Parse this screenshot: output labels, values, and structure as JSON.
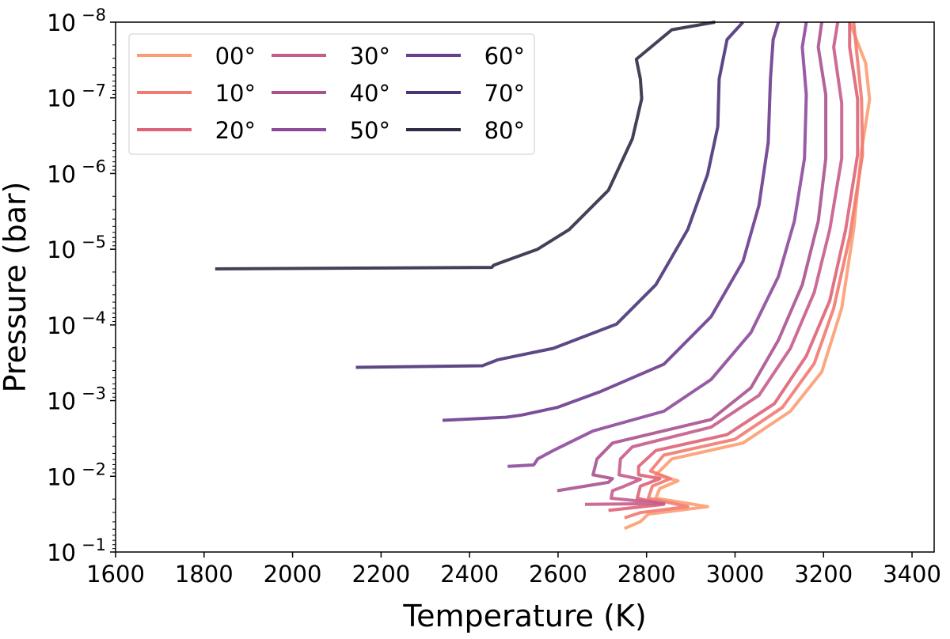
{
  "chart_data": {
    "type": "line",
    "title": "",
    "xlabel": "Temperature (K)",
    "ylabel": "Pressure (bar)",
    "xlim": [
      1600,
      3450
    ],
    "ylim_log10": [
      -8,
      -1
    ],
    "y_scale": "log",
    "y_inverted": true,
    "grid": false,
    "legend_placement": "top-left",
    "legend_columns": 3,
    "x_ticks": [
      1600,
      1800,
      2000,
      2200,
      2400,
      2600,
      2800,
      3000,
      3200,
      3400
    ],
    "x_tick_labels": [
      "1600",
      "1800",
      "2000",
      "2200",
      "2400",
      "2600",
      "2800",
      "3000",
      "3200",
      "3400"
    ],
    "y_ticks_log10": [
      -8,
      -7,
      -6,
      -5,
      -4,
      -3,
      -2,
      -1
    ],
    "y_tick_base": "10",
    "y_tick_exponents": [
      "−8",
      "−7",
      "−6",
      "−5",
      "−4",
      "−3",
      "−2",
      "−1"
    ],
    "point_format": "[temperature_K, log10_pressure_bar]",
    "series": [
      {
        "name": "00°",
        "color": "#fb9d72",
        "points": [
          [
            3259,
            -8
          ],
          [
            3295,
            -7.46
          ],
          [
            3304,
            -6.98
          ],
          [
            3286,
            -6.31
          ],
          [
            3268,
            -5.26
          ],
          [
            3241,
            -4.22
          ],
          [
            3196,
            -3.38
          ],
          [
            3125,
            -2.86
          ],
          [
            3018,
            -2.44
          ],
          [
            2857,
            -2.23
          ],
          [
            2821,
            -2.02
          ],
          [
            2871,
            -1.94
          ],
          [
            2830,
            -1.84
          ],
          [
            2821,
            -1.71
          ],
          [
            2938,
            -1.6
          ],
          [
            2804,
            -1.5
          ],
          [
            2786,
            -1.4
          ],
          [
            2750,
            -1.31
          ]
        ]
      },
      {
        "name": "10°",
        "color": "#f27a70",
        "points": [
          [
            3268,
            -8
          ],
          [
            3275,
            -7.6
          ],
          [
            3286,
            -6.98
          ],
          [
            3288,
            -6.25
          ],
          [
            3259,
            -5.16
          ],
          [
            3223,
            -4.22
          ],
          [
            3179,
            -3.49
          ],
          [
            3107,
            -2.91
          ],
          [
            3000,
            -2.49
          ],
          [
            2839,
            -2.28
          ],
          [
            2809,
            -2.07
          ],
          [
            2854,
            -1.97
          ],
          [
            2813,
            -1.87
          ],
          [
            2804,
            -1.71
          ],
          [
            2893,
            -1.6
          ],
          [
            2786,
            -1.52
          ],
          [
            2750,
            -1.45
          ]
        ]
      },
      {
        "name": "20°",
        "color": "#de6278",
        "points": [
          [
            3259,
            -8
          ],
          [
            3259,
            -7.67
          ],
          [
            3277,
            -6.98
          ],
          [
            3277,
            -6.25
          ],
          [
            3250,
            -5.26
          ],
          [
            3214,
            -4.32
          ],
          [
            3161,
            -3.59
          ],
          [
            3089,
            -2.96
          ],
          [
            2982,
            -2.55
          ],
          [
            2821,
            -2.34
          ],
          [
            2782,
            -2.13
          ],
          [
            2782,
            -2.02
          ],
          [
            2830,
            -1.97
          ],
          [
            2786,
            -1.87
          ],
          [
            2779,
            -1.71
          ],
          [
            2839,
            -1.63
          ],
          [
            2714,
            -1.55
          ]
        ]
      },
      {
        "name": "30°",
        "color": "#c65c8b",
        "points": [
          [
            3232,
            -8
          ],
          [
            3223,
            -7.67
          ],
          [
            3241,
            -6.93
          ],
          [
            3241,
            -6.2
          ],
          [
            3214,
            -5.26
          ],
          [
            3179,
            -4.43
          ],
          [
            3125,
            -3.69
          ],
          [
            3054,
            -3.07
          ],
          [
            2946,
            -2.65
          ],
          [
            2768,
            -2.39
          ],
          [
            2741,
            -2.23
          ],
          [
            2738,
            -2.02
          ],
          [
            2786,
            -1.96
          ],
          [
            2750,
            -1.87
          ],
          [
            2723,
            -1.81
          ],
          [
            2720,
            -1.71
          ],
          [
            2839,
            -1.64
          ],
          [
            2661,
            -1.63
          ]
        ]
      },
      {
        "name": "40°",
        "color": "#a9528f",
        "points": [
          [
            3196,
            -8
          ],
          [
            3188,
            -7.67
          ],
          [
            3205,
            -7.04
          ],
          [
            3205,
            -6.2
          ],
          [
            3188,
            -5.37
          ],
          [
            3152,
            -4.53
          ],
          [
            3098,
            -3.8
          ],
          [
            3036,
            -3.17
          ],
          [
            2946,
            -2.75
          ],
          [
            2723,
            -2.44
          ],
          [
            2688,
            -2.23
          ],
          [
            2679,
            -2.02
          ],
          [
            2723,
            -1.97
          ],
          [
            2714,
            -1.92
          ],
          [
            2598,
            -1.81
          ]
        ]
      },
      {
        "name": "50°",
        "color": "#8d4a9c",
        "points": [
          [
            3161,
            -8
          ],
          [
            3152,
            -7.67
          ],
          [
            3161,
            -7.04
          ],
          [
            3157,
            -6.2
          ],
          [
            3134,
            -5.37
          ],
          [
            3098,
            -4.64
          ],
          [
            3036,
            -3.9
          ],
          [
            2946,
            -3.28
          ],
          [
            2839,
            -2.86
          ],
          [
            2679,
            -2.6
          ],
          [
            2589,
            -2.34
          ],
          [
            2554,
            -2.23
          ],
          [
            2545,
            -2.15
          ],
          [
            2486,
            -2.13
          ]
        ]
      },
      {
        "name": "60°",
        "color": "#6c3c8e",
        "points": [
          [
            3098,
            -8
          ],
          [
            3086,
            -7.77
          ],
          [
            3080,
            -7.25
          ],
          [
            3075,
            -6.41
          ],
          [
            3054,
            -5.58
          ],
          [
            3018,
            -4.84
          ],
          [
            2946,
            -4.11
          ],
          [
            2839,
            -3.48
          ],
          [
            2696,
            -3.12
          ],
          [
            2598,
            -2.91
          ],
          [
            2518,
            -2.81
          ],
          [
            2482,
            -2.78
          ],
          [
            2339,
            -2.74
          ]
        ]
      },
      {
        "name": "70°",
        "color": "#4b3479",
        "points": [
          [
            3018,
            -8
          ],
          [
            2982,
            -7.77
          ],
          [
            2964,
            -7.25
          ],
          [
            2961,
            -6.62
          ],
          [
            2938,
            -5.99
          ],
          [
            2893,
            -5.26
          ],
          [
            2821,
            -4.53
          ],
          [
            2732,
            -4.01
          ],
          [
            2589,
            -3.69
          ],
          [
            2464,
            -3.54
          ],
          [
            2429,
            -3.46
          ],
          [
            2143,
            -3.44
          ]
        ]
      },
      {
        "name": "80°",
        "color": "#2e2c45",
        "points": [
          [
            2955,
            -8
          ],
          [
            2857,
            -7.9
          ],
          [
            2777,
            -7.51
          ],
          [
            2786,
            -7.25
          ],
          [
            2789,
            -6.99
          ],
          [
            2768,
            -6.46
          ],
          [
            2714,
            -5.78
          ],
          [
            2625,
            -5.26
          ],
          [
            2554,
            -5.0
          ],
          [
            2455,
            -4.79
          ],
          [
            2450,
            -4.76
          ],
          [
            1825,
            -4.74
          ]
        ]
      }
    ]
  }
}
